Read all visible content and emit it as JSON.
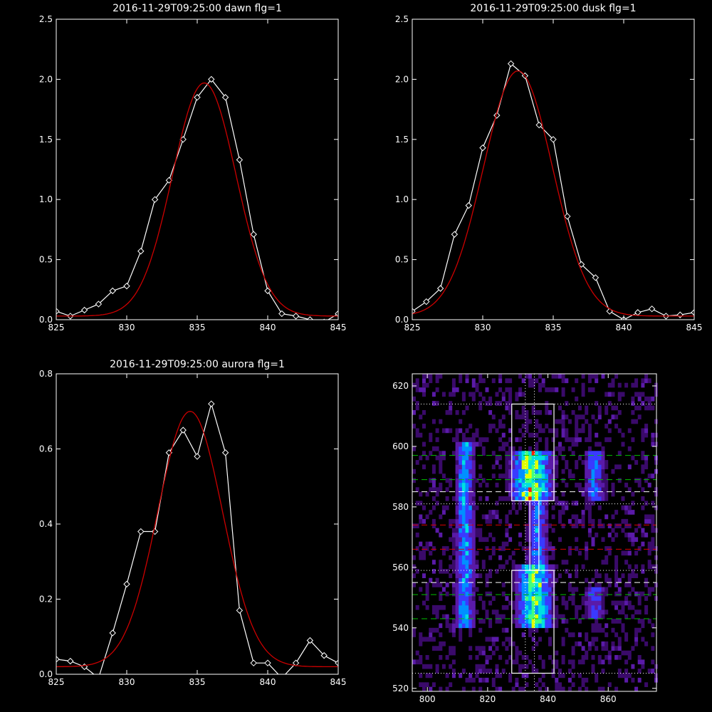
{
  "chart_data": [
    {
      "type": "line",
      "title": "2016-11-29T09:25:00 dawn flg=1",
      "xlim": [
        825,
        845
      ],
      "ylim": [
        0,
        2.5
      ],
      "xticks": [
        825,
        830,
        835,
        840,
        845
      ],
      "yticks": [
        0.0,
        0.5,
        1.0,
        1.5,
        2.0,
        2.5
      ],
      "ytick_labels": [
        "0.0",
        "0.5",
        "1.0",
        "1.5",
        "2.0",
        "2.5"
      ],
      "series": [
        {
          "color": "#ffffff",
          "marker": "diamond",
          "x": [
            825,
            826,
            827,
            828,
            829,
            830,
            831,
            832,
            833,
            834,
            835,
            836,
            837,
            838,
            839,
            840,
            841,
            842,
            843,
            844,
            845
          ],
          "y": [
            0.07,
            0.03,
            0.08,
            0.13,
            0.24,
            0.28,
            0.57,
            1.0,
            1.16,
            1.5,
            1.85,
            2.0,
            1.85,
            1.33,
            0.71,
            0.24,
            0.05,
            0.03,
            0.0,
            -0.02,
            0.05
          ]
        },
        {
          "color": "#cc0000",
          "fit": "gaussian",
          "amplitude": 1.94,
          "center": 835.5,
          "sigma": 2.25,
          "offset": 0.03
        }
      ]
    },
    {
      "type": "line",
      "title": "2016-11-29T09:25:00 dusk flg=1",
      "xlim": [
        825,
        845
      ],
      "ylim": [
        0,
        2.5
      ],
      "xticks": [
        825,
        830,
        835,
        840,
        845
      ],
      "yticks": [
        0.0,
        0.5,
        1.0,
        1.5,
        2.0,
        2.5
      ],
      "ytick_labels": [
        "0.0",
        "0.5",
        "1.0",
        "1.5",
        "2.0",
        "2.5"
      ],
      "series": [
        {
          "color": "#ffffff",
          "marker": "diamond",
          "x": [
            825,
            826,
            827,
            828,
            829,
            830,
            831,
            832,
            833,
            834,
            835,
            836,
            837,
            838,
            839,
            840,
            841,
            842,
            843,
            844,
            845
          ],
          "y": [
            0.07,
            0.15,
            0.26,
            0.71,
            0.95,
            1.43,
            1.7,
            2.13,
            2.03,
            1.62,
            1.5,
            0.86,
            0.46,
            0.35,
            0.07,
            0.0,
            0.06,
            0.09,
            0.03,
            0.04,
            0.06
          ]
        },
        {
          "color": "#cc0000",
          "fit": "gaussian",
          "amplitude": 2.04,
          "center": 832.5,
          "sigma": 2.45,
          "offset": 0.03
        }
      ]
    },
    {
      "type": "line",
      "title": "2016-11-29T09:25:00 aurora flg=1",
      "xlim": [
        825,
        845
      ],
      "ylim": [
        0,
        0.8
      ],
      "xticks": [
        825,
        830,
        835,
        840,
        845
      ],
      "yticks": [
        0.0,
        0.2,
        0.4,
        0.6,
        0.8
      ],
      "ytick_labels": [
        "0.0",
        "0.2",
        "0.4",
        "0.6",
        "0.8"
      ],
      "series": [
        {
          "color": "#ffffff",
          "marker": "diamond",
          "x": [
            825,
            826,
            827,
            828,
            829,
            830,
            831,
            832,
            833,
            834,
            835,
            836,
            837,
            838,
            839,
            840,
            841,
            842,
            843,
            844,
            845
          ],
          "y": [
            0.04,
            0.035,
            0.02,
            -0.01,
            0.11,
            0.24,
            0.38,
            0.38,
            0.59,
            0.65,
            0.58,
            0.72,
            0.59,
            0.17,
            0.03,
            0.03,
            -0.01,
            0.03,
            0.09,
            0.05,
            0.03
          ]
        },
        {
          "color": "#cc0000",
          "fit": "gaussian",
          "amplitude": 0.68,
          "center": 834.5,
          "sigma": 2.3,
          "offset": 0.02
        }
      ]
    },
    {
      "type": "heatmap",
      "title": "",
      "xlim": [
        795,
        876
      ],
      "ylim": [
        519,
        624
      ],
      "xticks": [
        800,
        820,
        840,
        860
      ],
      "yticks": [
        520,
        540,
        560,
        580,
        600,
        620
      ],
      "colormap": [
        "#3a0a6a",
        "#5a1aa8",
        "#3a3aff",
        "#0090ff",
        "#00e0e0",
        "#40ff80",
        "#e0ff00",
        "#ff2000"
      ],
      "intensity_regions": [
        {
          "x_center": 812,
          "x_width": 4,
          "y_range": [
            540,
            600
          ],
          "level": 0.5
        },
        {
          "x_center": 834,
          "x_width": 8,
          "y_range": [
            582,
            598
          ],
          "level": 0.85
        },
        {
          "x_center": 836,
          "x_width": 4,
          "y_range": [
            560,
            582
          ],
          "level": 0.45
        },
        {
          "x_center": 835,
          "x_width": 7,
          "y_range": [
            540,
            560
          ],
          "level": 0.75
        },
        {
          "x_center": 855,
          "x_width": 4,
          "y_range": [
            582,
            598
          ],
          "level": 0.45
        },
        {
          "x_center": 855,
          "x_width": 4,
          "y_range": [
            542,
            552
          ],
          "level": 0.35
        }
      ],
      "boxes": [
        {
          "x": [
            828,
            842
          ],
          "y": [
            582,
            614
          ]
        },
        {
          "x": [
            828,
            842
          ],
          "y": [
            525,
            559
          ]
        },
        {
          "x": [
            834,
            837
          ],
          "y": [
            559,
            582
          ]
        }
      ],
      "vertical_dotted": [
        832.5,
        835.5
      ],
      "horizontal_lines": [
        {
          "y": 614,
          "color": "#ffffff",
          "style": "dotted"
        },
        {
          "y": 597,
          "color": "#00c000",
          "style": "dashed"
        },
        {
          "y": 589,
          "color": "#00c000",
          "style": "dashed"
        },
        {
          "y": 585,
          "color": "#ffffff",
          "style": "dashed"
        },
        {
          "y": 581,
          "color": "#ffffff",
          "style": "dotted"
        },
        {
          "y": 574,
          "color": "#dd0000",
          "style": "dashed"
        },
        {
          "y": 566,
          "color": "#dd0000",
          "style": "dashed"
        },
        {
          "y": 559,
          "color": "#ffffff",
          "style": "dotted"
        },
        {
          "y": 555,
          "color": "#ffffff",
          "style": "dashed"
        },
        {
          "y": 551,
          "color": "#00c000",
          "style": "dashed"
        },
        {
          "y": 543,
          "color": "#00c000",
          "style": "dashed"
        },
        {
          "y": 525,
          "color": "#ffffff",
          "style": "dotted"
        }
      ]
    }
  ]
}
